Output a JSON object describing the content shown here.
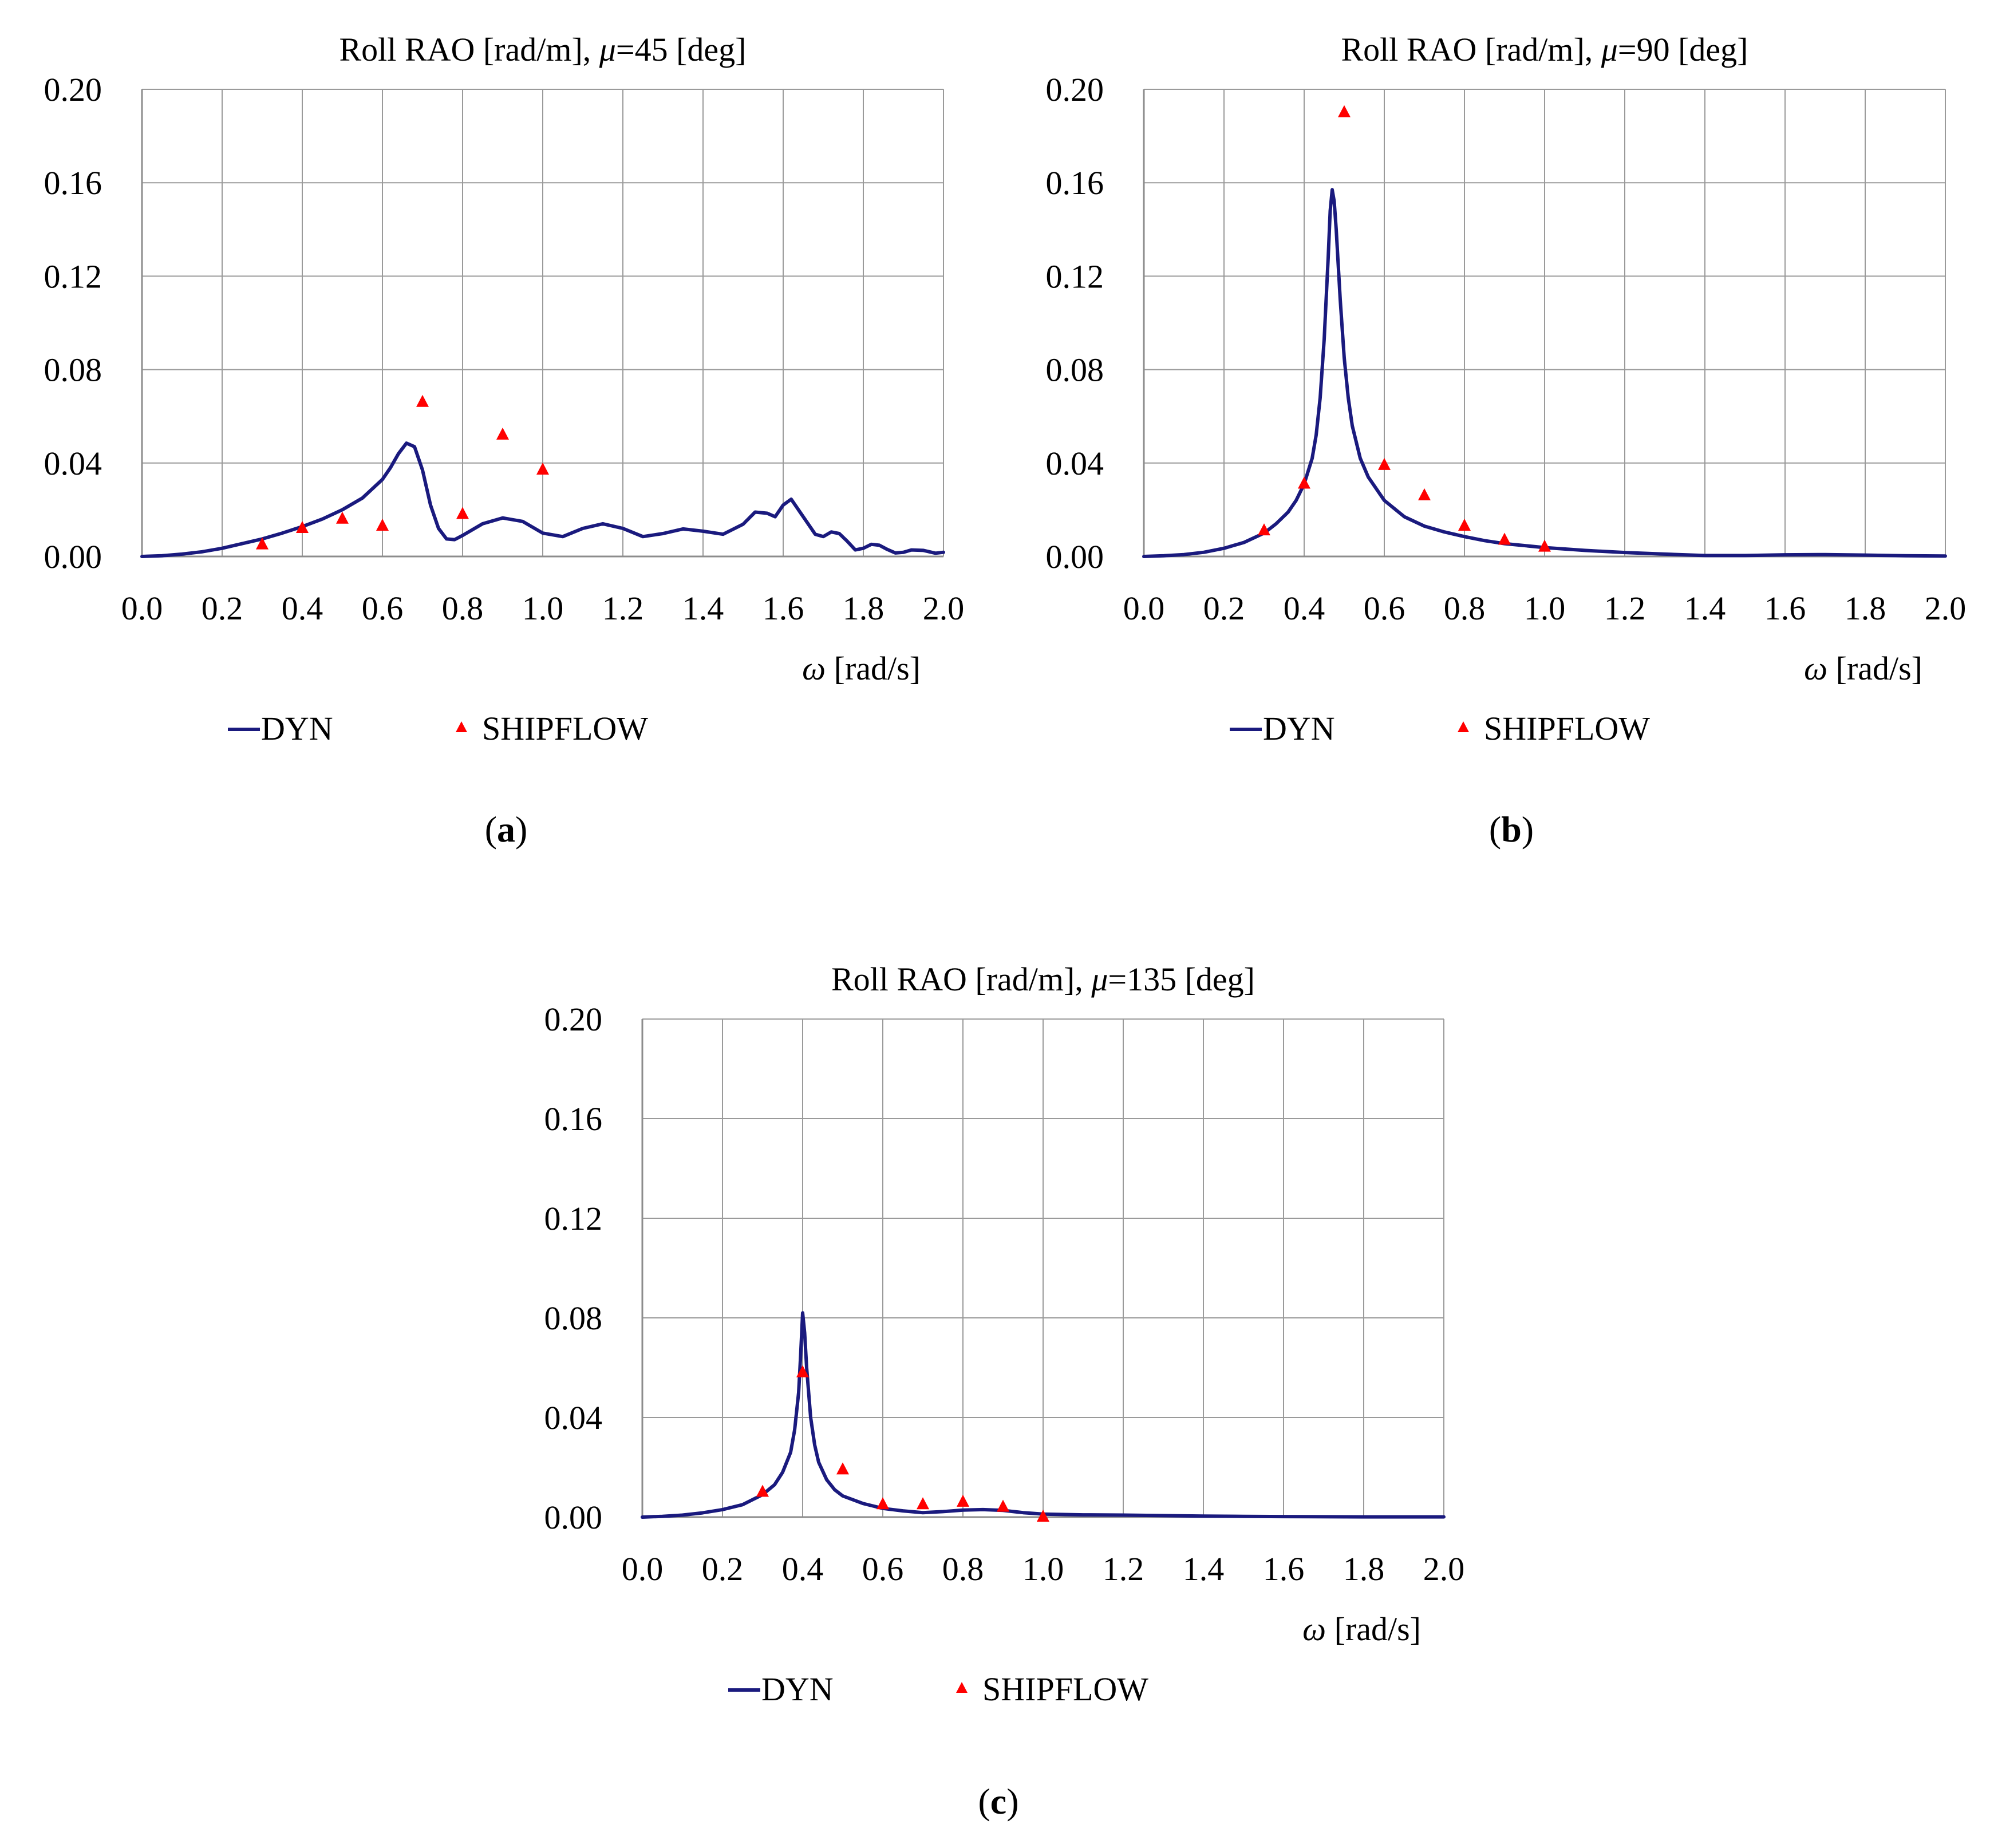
{
  "chart_data": [
    {
      "id": "a",
      "type": "line",
      "title": "Roll RAO [rad/m], μ=45 [deg]",
      "title_parts": {
        "pre": "Roll RAO [rad/m], ",
        "symbol": "μ",
        "post": "=45 [deg]"
      },
      "xlabel": "ω [rad/s]",
      "xlabel_parts": {
        "symbol": "ω",
        "post": " [rad/s]"
      },
      "ylabel": "",
      "xlim": [
        0,
        2.0
      ],
      "ylim": [
        0,
        0.2
      ],
      "xticks": [
        "0.0",
        "0.2",
        "0.4",
        "0.6",
        "0.8",
        "1.0",
        "1.2",
        "1.4",
        "1.6",
        "1.8",
        "2.0"
      ],
      "yticks": [
        "0.00",
        "0.04",
        "0.08",
        "0.12",
        "0.16",
        "0.20"
      ],
      "grid": true,
      "legend": {
        "position": "bottom",
        "entries": [
          "DYN",
          "SHIPFLOW"
        ]
      },
      "caption": "a",
      "series": [
        {
          "name": "DYN",
          "style": "line",
          "color": "#1a1a7e",
          "x": [
            0,
            0.05,
            0.1,
            0.15,
            0.2,
            0.25,
            0.3,
            0.35,
            0.4,
            0.45,
            0.5,
            0.55,
            0.6,
            0.62,
            0.64,
            0.66,
            0.68,
            0.7,
            0.72,
            0.74,
            0.76,
            0.78,
            0.8,
            0.85,
            0.9,
            0.95,
            1.0,
            1.05,
            1.1,
            1.15,
            1.2,
            1.25,
            1.3,
            1.35,
            1.4,
            1.45,
            1.5,
            1.53,
            1.56,
            1.58,
            1.6,
            1.62,
            1.65,
            1.68,
            1.7,
            1.72,
            1.74,
            1.76,
            1.78,
            1.8,
            1.82,
            1.84,
            1.86,
            1.88,
            1.9,
            1.92,
            1.95,
            1.98,
            2.0
          ],
          "y": [
            0,
            0.0003,
            0.001,
            0.002,
            0.0035,
            0.0055,
            0.0075,
            0.01,
            0.0128,
            0.016,
            0.02,
            0.025,
            0.033,
            0.038,
            0.044,
            0.0485,
            0.047,
            0.037,
            0.022,
            0.012,
            0.0075,
            0.0072,
            0.009,
            0.014,
            0.0165,
            0.015,
            0.01,
            0.0085,
            0.012,
            0.014,
            0.012,
            0.0085,
            0.0098,
            0.0118,
            0.0108,
            0.0095,
            0.0138,
            0.019,
            0.0185,
            0.017,
            0.022,
            0.0245,
            0.017,
            0.0095,
            0.0085,
            0.0105,
            0.0098,
            0.0065,
            0.0028,
            0.0035,
            0.0052,
            0.0048,
            0.003,
            0.0015,
            0.0018,
            0.0028,
            0.0026,
            0.0014,
            0.0018
          ]
        },
        {
          "name": "SHIPFLOW",
          "style": "triangle",
          "color": "#ff0000",
          "x": [
            0.3,
            0.4,
            0.5,
            0.6,
            0.7,
            0.8,
            0.9,
            1.0
          ],
          "y": [
            0.005,
            0.012,
            0.016,
            0.013,
            0.066,
            0.018,
            0.052,
            0.037
          ]
        }
      ]
    },
    {
      "id": "b",
      "type": "line",
      "title": "Roll RAO [rad/m], μ=90 [deg]",
      "title_parts": {
        "pre": "Roll RAO [rad/m], ",
        "symbol": "μ",
        "post": "=90 [deg]"
      },
      "xlabel": "ω [rad/s]",
      "xlabel_parts": {
        "symbol": "ω",
        "post": " [rad/s]"
      },
      "ylabel": "",
      "xlim": [
        0,
        2.0
      ],
      "ylim": [
        0,
        0.2
      ],
      "xticks": [
        "0.0",
        "0.2",
        "0.4",
        "0.6",
        "0.8",
        "1.0",
        "1.2",
        "1.4",
        "1.6",
        "1.8",
        "2.0"
      ],
      "yticks": [
        "0.00",
        "0.04",
        "0.08",
        "0.12",
        "0.16",
        "0.20"
      ],
      "grid": true,
      "legend": {
        "position": "bottom",
        "entries": [
          "DYN",
          "SHIPFLOW"
        ]
      },
      "caption": "b",
      "series": [
        {
          "name": "DYN",
          "style": "line",
          "color": "#1a1a7e",
          "x": [
            0,
            0.05,
            0.1,
            0.15,
            0.2,
            0.25,
            0.3,
            0.33,
            0.36,
            0.38,
            0.4,
            0.42,
            0.43,
            0.44,
            0.45,
            0.46,
            0.465,
            0.47,
            0.475,
            0.48,
            0.49,
            0.5,
            0.51,
            0.52,
            0.54,
            0.56,
            0.58,
            0.6,
            0.65,
            0.7,
            0.75,
            0.8,
            0.85,
            0.9,
            1.0,
            1.1,
            1.2,
            1.3,
            1.4,
            1.5,
            1.6,
            1.7,
            1.8,
            1.9,
            2.0
          ],
          "y": [
            0,
            0.0003,
            0.0008,
            0.0018,
            0.0035,
            0.006,
            0.01,
            0.014,
            0.019,
            0.024,
            0.031,
            0.042,
            0.052,
            0.068,
            0.093,
            0.128,
            0.148,
            0.157,
            0.152,
            0.14,
            0.11,
            0.085,
            0.068,
            0.056,
            0.042,
            0.034,
            0.029,
            0.024,
            0.017,
            0.013,
            0.0105,
            0.0085,
            0.0068,
            0.0055,
            0.0038,
            0.0026,
            0.0017,
            0.001,
            0.0004,
            0.0004,
            0.0007,
            0.0008,
            0.0006,
            0.0003,
            0.0002
          ]
        },
        {
          "name": "SHIPFLOW",
          "style": "triangle",
          "color": "#ff0000",
          "x": [
            0.3,
            0.4,
            0.5,
            0.6,
            0.7,
            0.8,
            0.9,
            1.0
          ],
          "y": [
            0.011,
            0.031,
            0.19,
            0.039,
            0.026,
            0.013,
            0.007,
            0.004
          ]
        }
      ]
    },
    {
      "id": "c",
      "type": "line",
      "title": "Roll RAO [rad/m], μ=135 [deg]",
      "title_parts": {
        "pre": "Roll RAO [rad/m], ",
        "symbol": "μ",
        "post": "=135 [deg]"
      },
      "xlabel": "ω [rad/s]",
      "xlabel_parts": {
        "symbol": "ω",
        "post": " [rad/s]"
      },
      "ylabel": "",
      "xlim": [
        0,
        2.0
      ],
      "ylim": [
        0,
        0.2
      ],
      "xticks": [
        "0.0",
        "0.2",
        "0.4",
        "0.6",
        "0.8",
        "1.0",
        "1.2",
        "1.4",
        "1.6",
        "1.8",
        "2.0"
      ],
      "yticks": [
        "0.00",
        "0.04",
        "0.08",
        "0.12",
        "0.16",
        "0.20"
      ],
      "grid": true,
      "legend": {
        "position": "bottom",
        "entries": [
          "DYN",
          "SHIPFLOW"
        ]
      },
      "caption": "c",
      "series": [
        {
          "name": "DYN",
          "style": "line",
          "color": "#1a1a7e",
          "x": [
            0,
            0.05,
            0.1,
            0.15,
            0.2,
            0.25,
            0.3,
            0.33,
            0.35,
            0.37,
            0.38,
            0.39,
            0.395,
            0.4,
            0.405,
            0.41,
            0.42,
            0.43,
            0.44,
            0.46,
            0.48,
            0.5,
            0.55,
            0.6,
            0.65,
            0.7,
            0.75,
            0.8,
            0.85,
            0.9,
            0.95,
            1.0,
            1.1,
            1.2,
            1.3,
            1.4,
            1.5,
            1.6,
            1.8,
            2.0
          ],
          "y": [
            0,
            0.0003,
            0.0008,
            0.0017,
            0.003,
            0.005,
            0.009,
            0.013,
            0.018,
            0.026,
            0.035,
            0.05,
            0.065,
            0.082,
            0.074,
            0.06,
            0.04,
            0.029,
            0.022,
            0.015,
            0.011,
            0.0085,
            0.0055,
            0.0035,
            0.0025,
            0.0018,
            0.0022,
            0.0028,
            0.003,
            0.0027,
            0.0018,
            0.0012,
            0.0009,
            0.0008,
            0.0006,
            0.0004,
            0.0003,
            0.0002,
            0.0001,
            0.0001
          ]
        },
        {
          "name": "SHIPFLOW",
          "style": "triangle",
          "color": "#ff0000",
          "x": [
            0.3,
            0.4,
            0.5,
            0.6,
            0.7,
            0.8,
            0.9,
            1.0
          ],
          "y": [
            0.01,
            0.058,
            0.019,
            0.005,
            0.005,
            0.006,
            0.004,
            0.0
          ]
        }
      ]
    }
  ],
  "captions": {
    "a": {
      "open": "(",
      "letter": "a",
      "close": ")"
    },
    "b": {
      "open": "(",
      "letter": "b",
      "close": ")"
    },
    "c": {
      "open": "(",
      "letter": "c",
      "close": ")"
    }
  },
  "colors": {
    "line": "#1a1a7e",
    "marker": "#ff0000",
    "grid": "#9a9a9a",
    "axis": "#8c8c8c"
  }
}
